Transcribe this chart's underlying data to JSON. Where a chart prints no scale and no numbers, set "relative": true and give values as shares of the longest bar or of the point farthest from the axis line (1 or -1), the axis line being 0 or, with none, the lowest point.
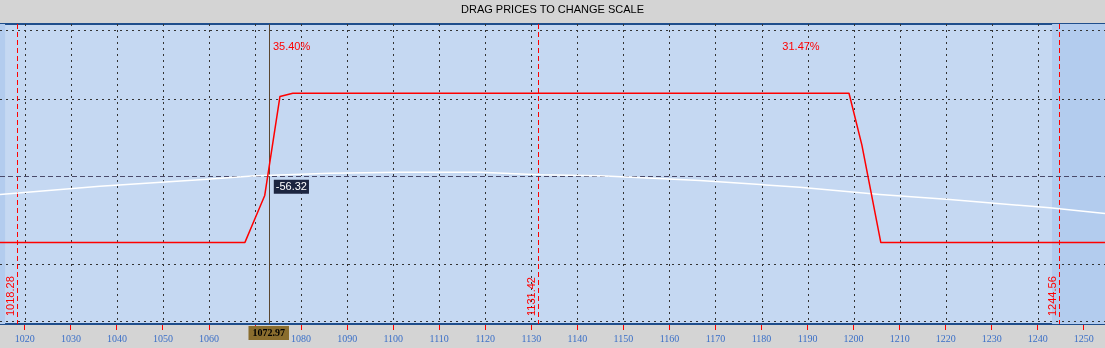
{
  "chart_data": {
    "type": "line",
    "title": "DRAG PRICES TO CHANGE SCALE",
    "relative": true,
    "xlim": [
      1014.6,
      1254.6
    ],
    "xticks": [
      1020,
      1030,
      1040,
      1050,
      1060,
      {
        "value": 1070,
        "label": null
      },
      1080,
      1090,
      1100,
      1110,
      1120,
      1130,
      1140,
      1150,
      1160,
      1170,
      1180,
      1190,
      1200,
      1210,
      1220,
      1230,
      1240,
      1250
    ],
    "grid": "x",
    "legend": false,
    "marker": "none",
    "series": [
      {
        "color": "#ff0000",
        "x": [
          1014.6,
          1067.8,
          1072.1,
          1075.4,
          1078.2,
          1199,
          1201.8,
          1205.9,
          1254.6
        ],
        "values": [
          -0.81,
          -0.81,
          -0.24,
          0.96,
          1,
          1,
          0.37,
          -0.81,
          -0.81
        ]
      },
      {
        "color": "#ffffff",
        "x": [
          1014.6,
          1036.3,
          1058,
          1070.6,
          1086.2,
          1101.5,
          1118.8,
          1131.9,
          1144.9,
          1166.6,
          1188.3,
          1205.7,
          1220.9,
          1242.6,
          1254.6
        ],
        "values": [
          -0.23,
          -0.13,
          -0.05,
          0,
          0.03,
          0.04,
          0.04,
          0.01,
          0,
          -0.06,
          -0.14,
          -0.23,
          -0.29,
          -0.39,
          -0.46
        ]
      }
    ],
    "ref_lines": [
      {
        "axis": "x",
        "value": 1018.28,
        "label": "1018.28",
        "color": "#ff0000",
        "line_style": "dashed"
      },
      {
        "axis": "x",
        "value": 1131.42,
        "label": "1131.42",
        "color": "#ff0000",
        "line_style": "dashed"
      },
      {
        "axis": "x",
        "value": 1244.56,
        "label": "1244.56",
        "color": "#ff0000",
        "line_style": "dashed"
      },
      {
        "axis": "x",
        "value": 1072.97,
        "label": "1072.97",
        "color": "#5a4630",
        "line_style": "solid"
      },
      {
        "axis": "y",
        "value": 0,
        "color": "#4a4a6a",
        "line_style": "dashed"
      }
    ],
    "bands": [
      {
        "axis": "x",
        "from": 1014.6,
        "to": 1015.7,
        "color": "#b3ccee"
      },
      {
        "axis": "x",
        "from": 1243.1,
        "to": 1254.6,
        "color": "#b3ccee"
      }
    ],
    "annotations": [
      "35.40%",
      "31.47%",
      {
        "text": "-56.32",
        "x": 1074.5,
        "y": 0
      }
    ]
  }
}
